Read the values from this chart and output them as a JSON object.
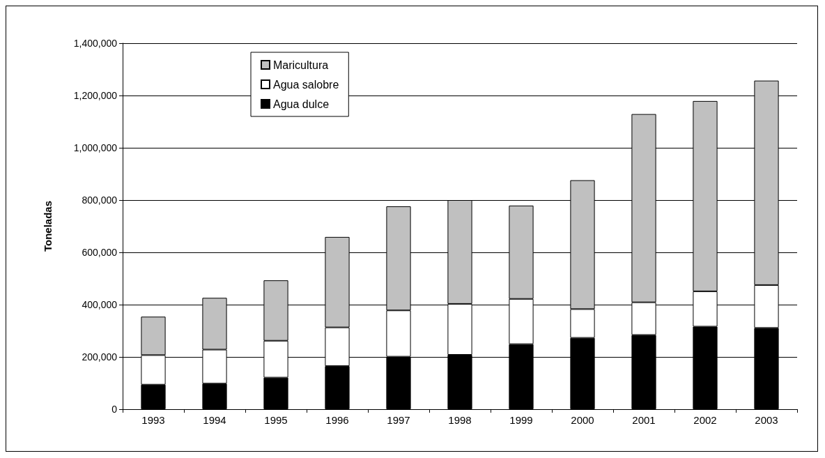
{
  "chart_data": {
    "type": "bar",
    "stacked": true,
    "ylabel": "Toneladas",
    "categories": [
      "1993",
      "1994",
      "1995",
      "1996",
      "1997",
      "1998",
      "1999",
      "2000",
      "2001",
      "2002",
      "2003"
    ],
    "series": [
      {
        "name": "Agua dulce",
        "color": "#000000",
        "values": [
          94000,
          98000,
          121000,
          165000,
          201000,
          208000,
          249000,
          273000,
          284000,
          316000,
          311000
        ]
      },
      {
        "name": "Agua salobre",
        "color": "#ffffff",
        "values": [
          113000,
          130000,
          141000,
          148000,
          177000,
          195000,
          173000,
          110000,
          125000,
          135000,
          164000
        ]
      },
      {
        "name": "Maricultura",
        "color": "#c0c0c0",
        "values": [
          147000,
          198000,
          231000,
          346000,
          398000,
          397000,
          357000,
          493000,
          720000,
          728000,
          782000
        ]
      }
    ],
    "ylim": [
      0,
      1400000
    ],
    "yticks": [
      {
        "value": 0,
        "label": "0"
      },
      {
        "value": 200000,
        "label": "200,000"
      },
      {
        "value": 400000,
        "label": "400,000"
      },
      {
        "value": 600000,
        "label": "600,000"
      },
      {
        "value": 800000,
        "label": "800,000"
      },
      {
        "value": 1000000,
        "label": "1,000,000"
      },
      {
        "value": 1200000,
        "label": "1,200,000"
      },
      {
        "value": 1400000,
        "label": "1,400,000"
      }
    ],
    "grid": "y",
    "legend": "top left"
  }
}
